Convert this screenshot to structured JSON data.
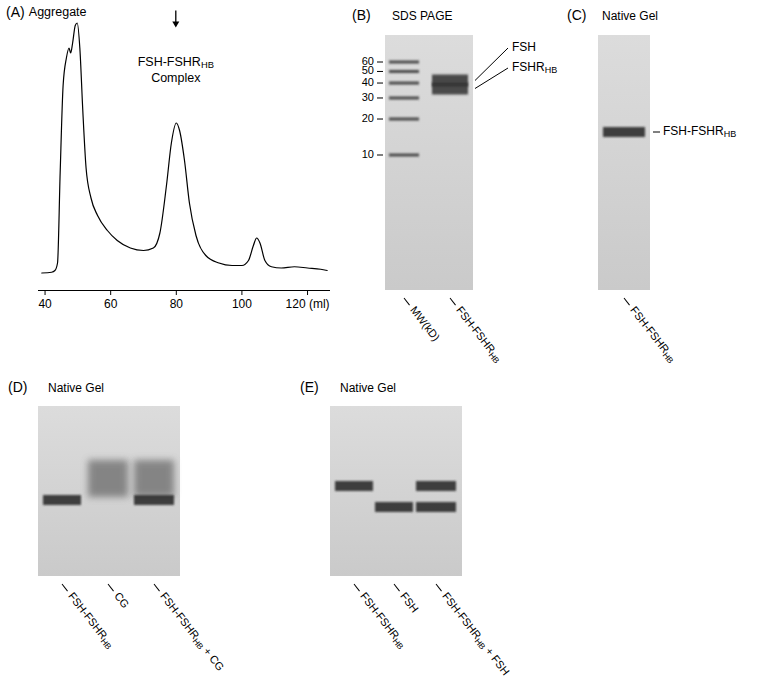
{
  "chart_data": {
    "type": "line",
    "title": "(A)",
    "x": [
      39,
      42,
      43,
      43.8,
      44.6,
      45.5,
      46.5,
      47.3,
      47.8,
      48.4,
      49.2,
      49.8,
      50.6,
      51.5,
      52.5,
      54,
      56,
      59,
      62,
      66,
      70,
      73,
      75,
      77,
      78.5,
      80,
      81,
      82.5,
      84,
      86,
      89,
      93,
      97,
      100,
      102,
      103.5,
      104.5,
      105.5,
      107,
      109,
      112,
      116,
      120,
      124,
      126
    ],
    "values": [
      0,
      0.3,
      1,
      4,
      40,
      75,
      86,
      90,
      88,
      92,
      99,
      100,
      90,
      65,
      42,
      30,
      23,
      17,
      13,
      10,
      9,
      10,
      16,
      35,
      52,
      60,
      57,
      45,
      28,
      15,
      7,
      4,
      3,
      3,
      5,
      11,
      14,
      12,
      5,
      2.5,
      2,
      2.5,
      2,
      1.5,
      1
    ],
    "color": "#000000",
    "xlim": [
      38,
      127
    ],
    "xticks": [
      40,
      60,
      80,
      100,
      {
        "value": 120,
        "label": "120 (ml)"
      }
    ],
    "ylim": [
      -7,
      105
    ],
    "tick_labels": "x",
    "grid": false,
    "annotations": [
      {
        "text": "Aggregate",
        "x": 44,
        "y": 104
      },
      {
        "text": "FSH-FSHRHB Complex",
        "x": 80,
        "y": 84,
        "marker": "arrow"
      }
    ]
  },
  "subscript": "HB",
  "gels": [
    {
      "panel": "(B)",
      "title": "SDS PAGE",
      "type": "sds",
      "markers": [
        60,
        50,
        40,
        30,
        20,
        10
      ],
      "band_labels": true,
      "lanes": [
        {
          "label": "MW(kD)",
          "ladder": true
        },
        {
          "label": "FSH-FSHRHB",
          "bands": [
            {
              "name": "FSH",
              "mw": 42
            },
            {
              "name": "FSHRHB",
              "mw": 36
            }
          ]
        }
      ]
    },
    {
      "panel": "(C)",
      "title": "Native Gel",
      "type": "native",
      "species": [
        {
          "name": "FSH-FSHRHB"
        }
      ],
      "band_labels": true,
      "lanes": [
        {
          "label": "FSH-FSHRHB",
          "bands": [
            "FSH-FSHRHB"
          ]
        }
      ]
    },
    {
      "panel": "(D)",
      "title": "Native Gel",
      "type": "native",
      "species": [
        {
          "name": "CG",
          "smear": true
        },
        {
          "name": "FSH-FSHRHB"
        }
      ],
      "band_labels": false,
      "lanes": [
        {
          "label": "FSH-FSHRHB",
          "bands": [
            "FSH-FSHRHB"
          ]
        },
        {
          "label": "CG",
          "bands": [
            "CG"
          ]
        },
        {
          "label": "FSH-FSHRHB + CG",
          "bands": [
            "CG",
            "FSH-FSHRHB"
          ]
        }
      ]
    },
    {
      "panel": "(E)",
      "title": "Native Gel",
      "type": "native",
      "species": [
        {
          "name": "FSH-FSHRHB"
        },
        {
          "name": "FSH"
        }
      ],
      "band_labels": false,
      "lanes": [
        {
          "label": "FSH-FSHRHB",
          "bands": [
            "FSH-FSHRHB"
          ]
        },
        {
          "label": "FSH",
          "bands": [
            "FSH"
          ]
        },
        {
          "label": "FSH-FSHRHB + FSH",
          "bands": [
            "FSH-FSHRHB",
            "FSH"
          ]
        }
      ]
    }
  ]
}
